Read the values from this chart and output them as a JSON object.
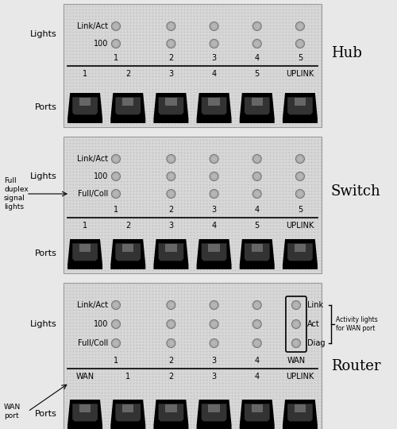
{
  "panel_bg": "#cccccc",
  "outer_bg": "#ffffff",
  "led_face": "#b0b0b0",
  "led_edge": "#888888",
  "port_color": "#000000",
  "label_fs": 8,
  "small_fs": 7,
  "title_fs": 13,
  "ann_fs": 6.5,
  "hub": {
    "title": "Hub",
    "lights_label": "Lights",
    "led_rows": [
      "Link/Act",
      "100"
    ],
    "port_col_labels": [
      "1",
      "2",
      "3",
      "4",
      "5"
    ],
    "port_labels": [
      "1",
      "2",
      "3",
      "4",
      "5",
      "UPLINK"
    ],
    "ports_label": "Ports"
  },
  "switch": {
    "title": "Switch",
    "lights_label": "Lights",
    "led_rows": [
      "Link/Act",
      "100",
      "Full/Coll"
    ],
    "port_col_labels": [
      "1",
      "2",
      "3",
      "4",
      "5"
    ],
    "port_labels": [
      "1",
      "2",
      "3",
      "4",
      "5",
      "UPLINK"
    ],
    "ports_label": "Ports",
    "annotation": "Full\nduplex\nsignal\nlights"
  },
  "router": {
    "title": "Router",
    "lights_label": "Lights",
    "led_rows": [
      "Link/Act",
      "100",
      "Full/Coll"
    ],
    "port_col_labels": [
      "1",
      "2",
      "3",
      "4",
      "WAN"
    ],
    "port_labels": [
      "WAN",
      "1",
      "2",
      "3",
      "4",
      "UPLINK"
    ],
    "ports_label": "Ports",
    "wan_label": "WAN\nport",
    "wan_lights": [
      "Link",
      "Act",
      "Diag"
    ],
    "wan_lights_label": "Activity lights\nfor WAN port"
  }
}
